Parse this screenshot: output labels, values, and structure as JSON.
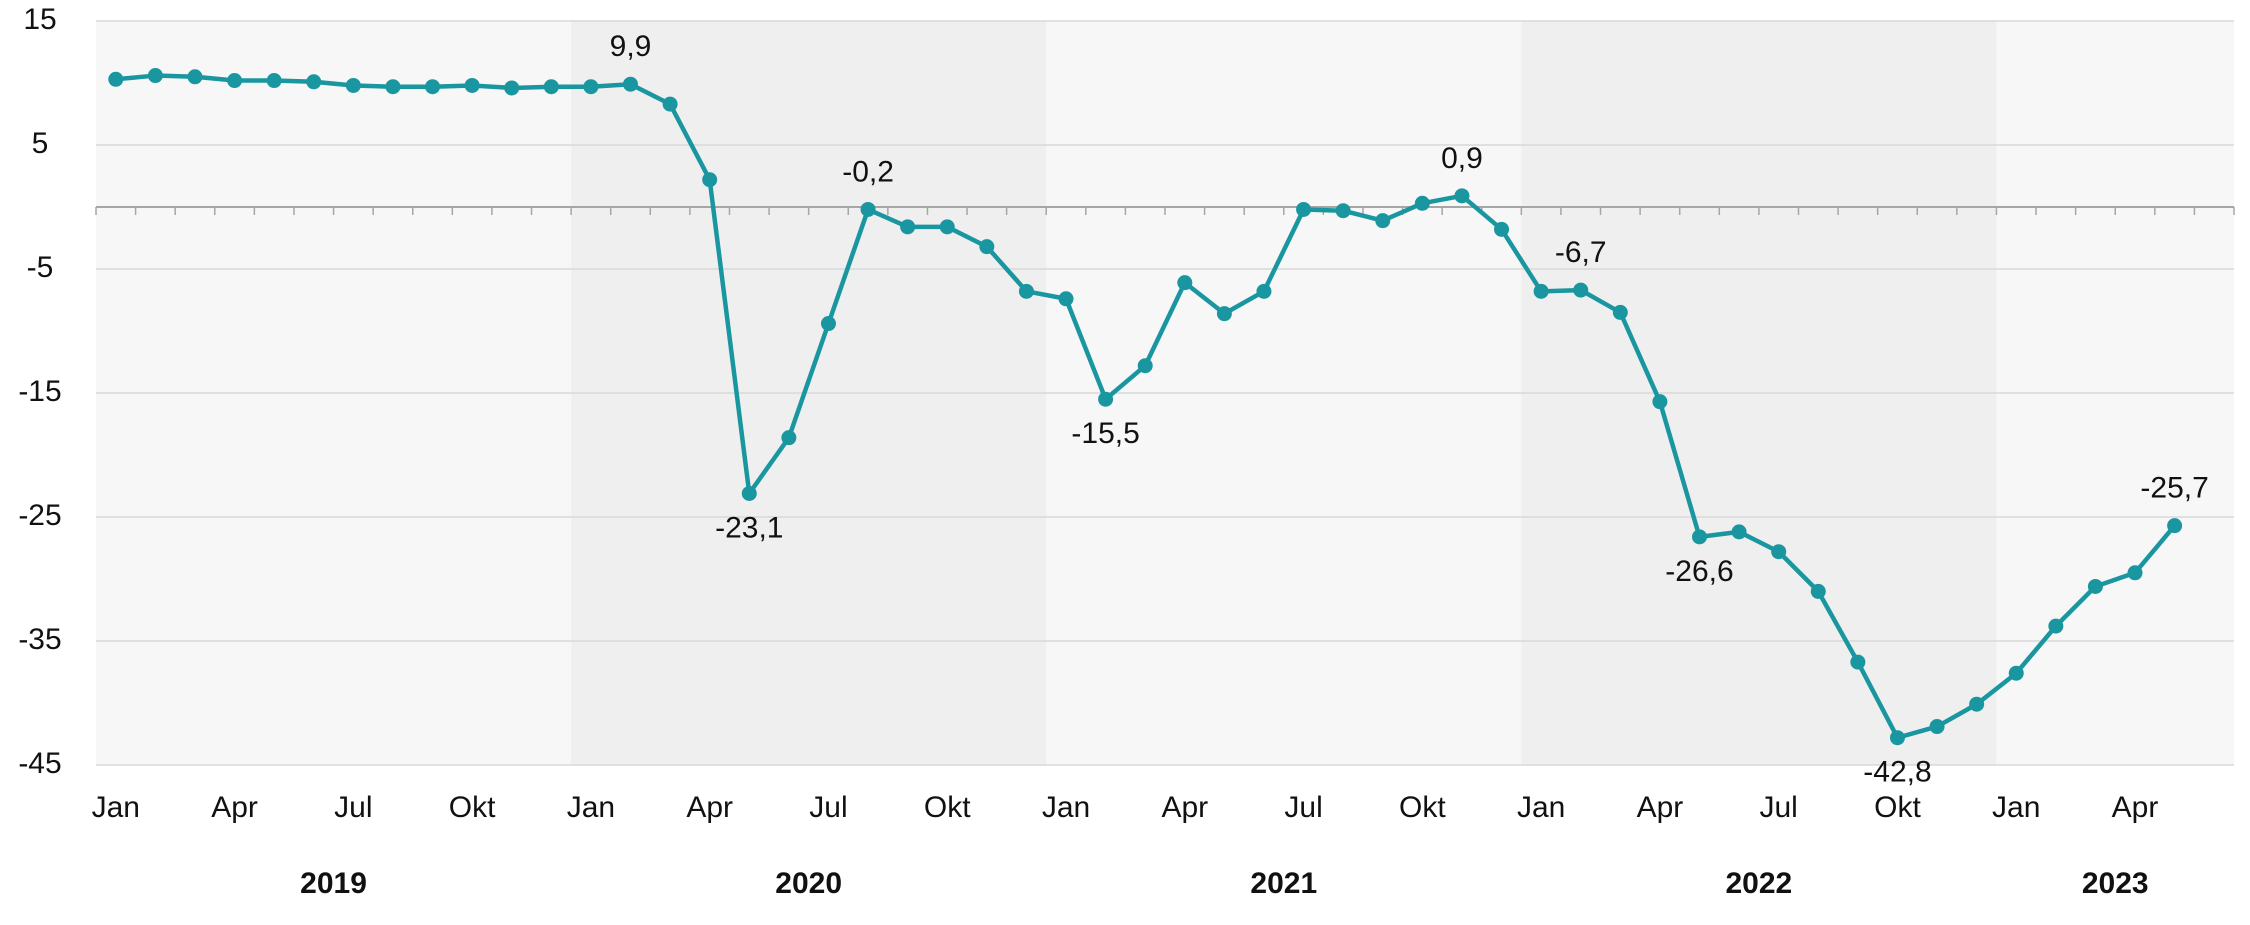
{
  "chart_data": {
    "type": "line",
    "categories": [
      "Jan",
      null,
      null,
      "Apr",
      null,
      null,
      "Jul",
      null,
      null,
      "Okt",
      null,
      null,
      "Jan",
      null,
      null,
      "Apr",
      null,
      null,
      "Jul",
      null,
      null,
      "Okt",
      null,
      null,
      "Jan",
      null,
      null,
      "Apr",
      null,
      null,
      "Jul",
      null,
      null,
      "Okt",
      null,
      null,
      "Jan",
      null,
      null,
      "Apr",
      null,
      null,
      "Jul",
      null,
      null,
      "Okt",
      null,
      null,
      "Jan",
      null,
      null,
      "Apr",
      null
    ],
    "groups": [
      {
        "label": "2019",
        "shaded": false
      },
      {
        "label": "2020",
        "shaded": true
      },
      {
        "label": "2021",
        "shaded": false
      },
      {
        "label": "2022",
        "shaded": true
      },
      {
        "label": "2023",
        "shaded": false
      }
    ],
    "series": [
      {
        "color": "#1a96a0",
        "values": [
          10.3,
          10.6,
          10.5,
          10.2,
          10.2,
          10.1,
          9.8,
          9.7,
          9.7,
          9.8,
          9.6,
          9.7,
          9.7,
          9.9,
          8.3,
          2.2,
          -23.1,
          -18.6,
          -9.4,
          -0.2,
          -1.6,
          -1.6,
          -3.2,
          -6.8,
          -7.4,
          -15.5,
          -12.8,
          -6.1,
          -8.6,
          -6.8,
          -0.2,
          -0.3,
          -1.1,
          0.3,
          0.9,
          -1.8,
          -6.8,
          -6.7,
          -8.5,
          -15.7,
          -26.6,
          -26.2,
          -27.8,
          -31.0,
          -36.7,
          -42.8,
          -41.9,
          -40.1,
          -37.6,
          -33.8,
          -30.6,
          -29.5,
          -25.7
        ],
        "value_labels": [
          null,
          null,
          null,
          null,
          null,
          null,
          null,
          null,
          null,
          null,
          null,
          null,
          null,
          "9,9",
          null,
          null,
          "-23,1",
          null,
          null,
          "-0,2",
          null,
          null,
          null,
          null,
          null,
          "-15,5",
          null,
          null,
          null,
          null,
          null,
          null,
          null,
          null,
          "0,9",
          null,
          null,
          "-6,7",
          null,
          null,
          "-26,6",
          null,
          null,
          null,
          null,
          "-42,8",
          null,
          null,
          null,
          null,
          null,
          null,
          "-25,7"
        ]
      }
    ],
    "ylim": [
      -45,
      15
    ],
    "yticks": [
      15,
      5,
      -5,
      -15,
      -25,
      -35,
      -45
    ],
    "grid": true
  }
}
